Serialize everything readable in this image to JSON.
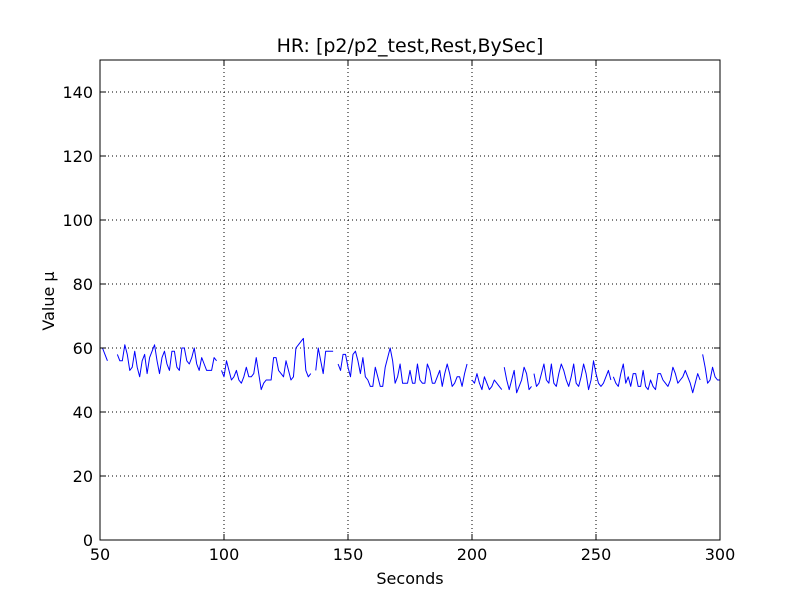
{
  "chart_data": {
    "type": "line",
    "title": "HR: [p2/p2_test,Rest,BySec]",
    "xlabel": "Seconds",
    "ylabel": "Value μ",
    "xlim": [
      50,
      300
    ],
    "ylim": [
      0,
      150
    ],
    "x_ticks": [
      50,
      100,
      150,
      200,
      250,
      300
    ],
    "x_tick_labels": [
      "50",
      "100",
      "150",
      "200",
      "250",
      "300"
    ],
    "y_ticks": [
      0,
      20,
      40,
      60,
      80,
      100,
      120,
      140
    ],
    "y_tick_labels": [
      "0",
      "20",
      "40",
      "60",
      "80",
      "100",
      "120",
      "140"
    ],
    "grid": true,
    "grid_style": "dotted",
    "legend": "none",
    "colors": {
      "line": "#0000ff",
      "axes": "#000000",
      "grid": "#000000",
      "background": "#ffffff"
    },
    "series": [
      {
        "segments": [
          {
            "x": [
              50,
              51,
              52,
              53
            ],
            "y": [
              60,
              60,
              58,
              56
            ]
          },
          {
            "x": [
              57,
              58,
              59,
              60,
              61,
              62,
              63,
              64,
              65,
              66,
              67,
              68,
              69,
              70,
              71,
              72,
              73,
              74,
              75,
              76,
              77,
              78,
              79,
              80,
              81,
              82,
              83,
              84,
              85,
              86,
              87,
              88,
              89,
              90,
              91,
              92,
              93,
              94,
              95,
              96,
              97
            ],
            "y": [
              58,
              56,
              56,
              61,
              58,
              53,
              54,
              59,
              54,
              51,
              56,
              58,
              52,
              57,
              59,
              61,
              56,
              52,
              57,
              59,
              55,
              53,
              59,
              59,
              54,
              53,
              60,
              60,
              56,
              55,
              57,
              60,
              55,
              53,
              57,
              55,
              53,
              53,
              53,
              57,
              56
            ]
          },
          {
            "x": [
              99,
              100,
              101,
              102,
              103,
              104,
              105,
              106,
              107,
              108,
              109,
              110,
              111,
              112,
              113,
              114,
              115,
              116,
              117,
              118,
              119,
              120,
              121,
              122,
              123,
              124,
              125,
              126,
              127,
              128,
              129,
              130,
              131,
              132,
              133,
              134,
              135
            ],
            "y": [
              53,
              51,
              56,
              53,
              50,
              51,
              53,
              50,
              49,
              51,
              54,
              51,
              51,
              52,
              57,
              52,
              47,
              49,
              50,
              50,
              50,
              57,
              57,
              53,
              52,
              51,
              56,
              53,
              50,
              51,
              60,
              61,
              62,
              63,
              53,
              51,
              52
            ]
          },
          {
            "x": [
              137,
              138,
              139,
              140,
              141,
              142,
              143,
              144
            ],
            "y": [
              53,
              60,
              56,
              52,
              59,
              59,
              59,
              59
            ]
          },
          {
            "x": [
              146,
              147,
              148,
              149,
              150,
              151,
              152,
              153,
              154,
              155,
              156,
              157,
              158,
              159,
              160,
              161,
              162,
              163,
              164,
              165,
              166,
              167,
              168,
              169,
              170,
              171,
              172,
              173,
              174,
              175,
              176,
              177,
              178,
              179,
              180,
              181,
              182,
              183,
              184,
              185,
              186,
              187,
              188,
              189,
              190,
              191,
              192,
              193,
              194,
              195,
              196,
              197,
              198
            ],
            "y": [
              55,
              53,
              58,
              58,
              54,
              51,
              58,
              59,
              56,
              52,
              57,
              51,
              50,
              48,
              48,
              54,
              51,
              48,
              48,
              54,
              57,
              60,
              56,
              49,
              51,
              55,
              49,
              49,
              49,
              53,
              49,
              49,
              55,
              50,
              49,
              49,
              55,
              53,
              49,
              49,
              51,
              53,
              48,
              52,
              55,
              52,
              48,
              49,
              51,
              51,
              48,
              52,
              55
            ]
          },
          {
            "x": [
              200,
              201,
              202,
              203,
              204,
              205,
              206,
              207,
              208,
              209,
              210,
              211,
              212
            ],
            "y": [
              50,
              49,
              52,
              49,
              47,
              51,
              49,
              47,
              48,
              50,
              49,
              48,
              47
            ]
          },
          {
            "x": [
              213,
              214,
              215,
              216,
              217,
              218,
              219,
              220,
              221,
              222,
              223,
              224
            ],
            "y": [
              54,
              50,
              47,
              50,
              53,
              46,
              48,
              50,
              54,
              52,
              47,
              48
            ]
          },
          {
            "x": [
              225,
              226,
              227,
              228,
              229,
              230,
              231,
              232,
              233,
              234,
              235,
              236,
              237,
              238,
              239,
              240,
              241,
              242,
              243,
              244,
              245,
              246,
              247,
              248,
              249,
              250,
              251,
              252,
              253,
              254,
              255,
              256
            ],
            "y": [
              52,
              48,
              49,
              52,
              55,
              50,
              49,
              55,
              49,
              48,
              52,
              55,
              53,
              50,
              48,
              51,
              55,
              49,
              48,
              51,
              55,
              52,
              47,
              50,
              56,
              52,
              49,
              48,
              49,
              51,
              53,
              50
            ]
          },
          {
            "x": [
              257,
              258,
              259,
              260,
              261,
              262,
              263,
              264,
              265,
              266,
              267,
              268,
              269,
              270,
              271,
              272,
              273,
              274,
              275,
              276,
              277,
              278,
              279,
              280,
              281,
              282,
              283,
              284,
              285,
              286,
              287,
              288,
              289,
              290,
              291,
              292
            ],
            "y": [
              51,
              49,
              48,
              52,
              55,
              49,
              51,
              48,
              52,
              52,
              48,
              48,
              53,
              48,
              47,
              50,
              48,
              47,
              52,
              52,
              50,
              49,
              48,
              50,
              54,
              52,
              49,
              50,
              51,
              53,
              51,
              49,
              46,
              49,
              52,
              50
            ]
          },
          {
            "x": [
              293,
              294,
              295,
              296,
              297,
              298,
              299,
              300
            ],
            "y": [
              58,
              54,
              49,
              50,
              54,
              51,
              50,
              50
            ]
          }
        ]
      }
    ]
  }
}
